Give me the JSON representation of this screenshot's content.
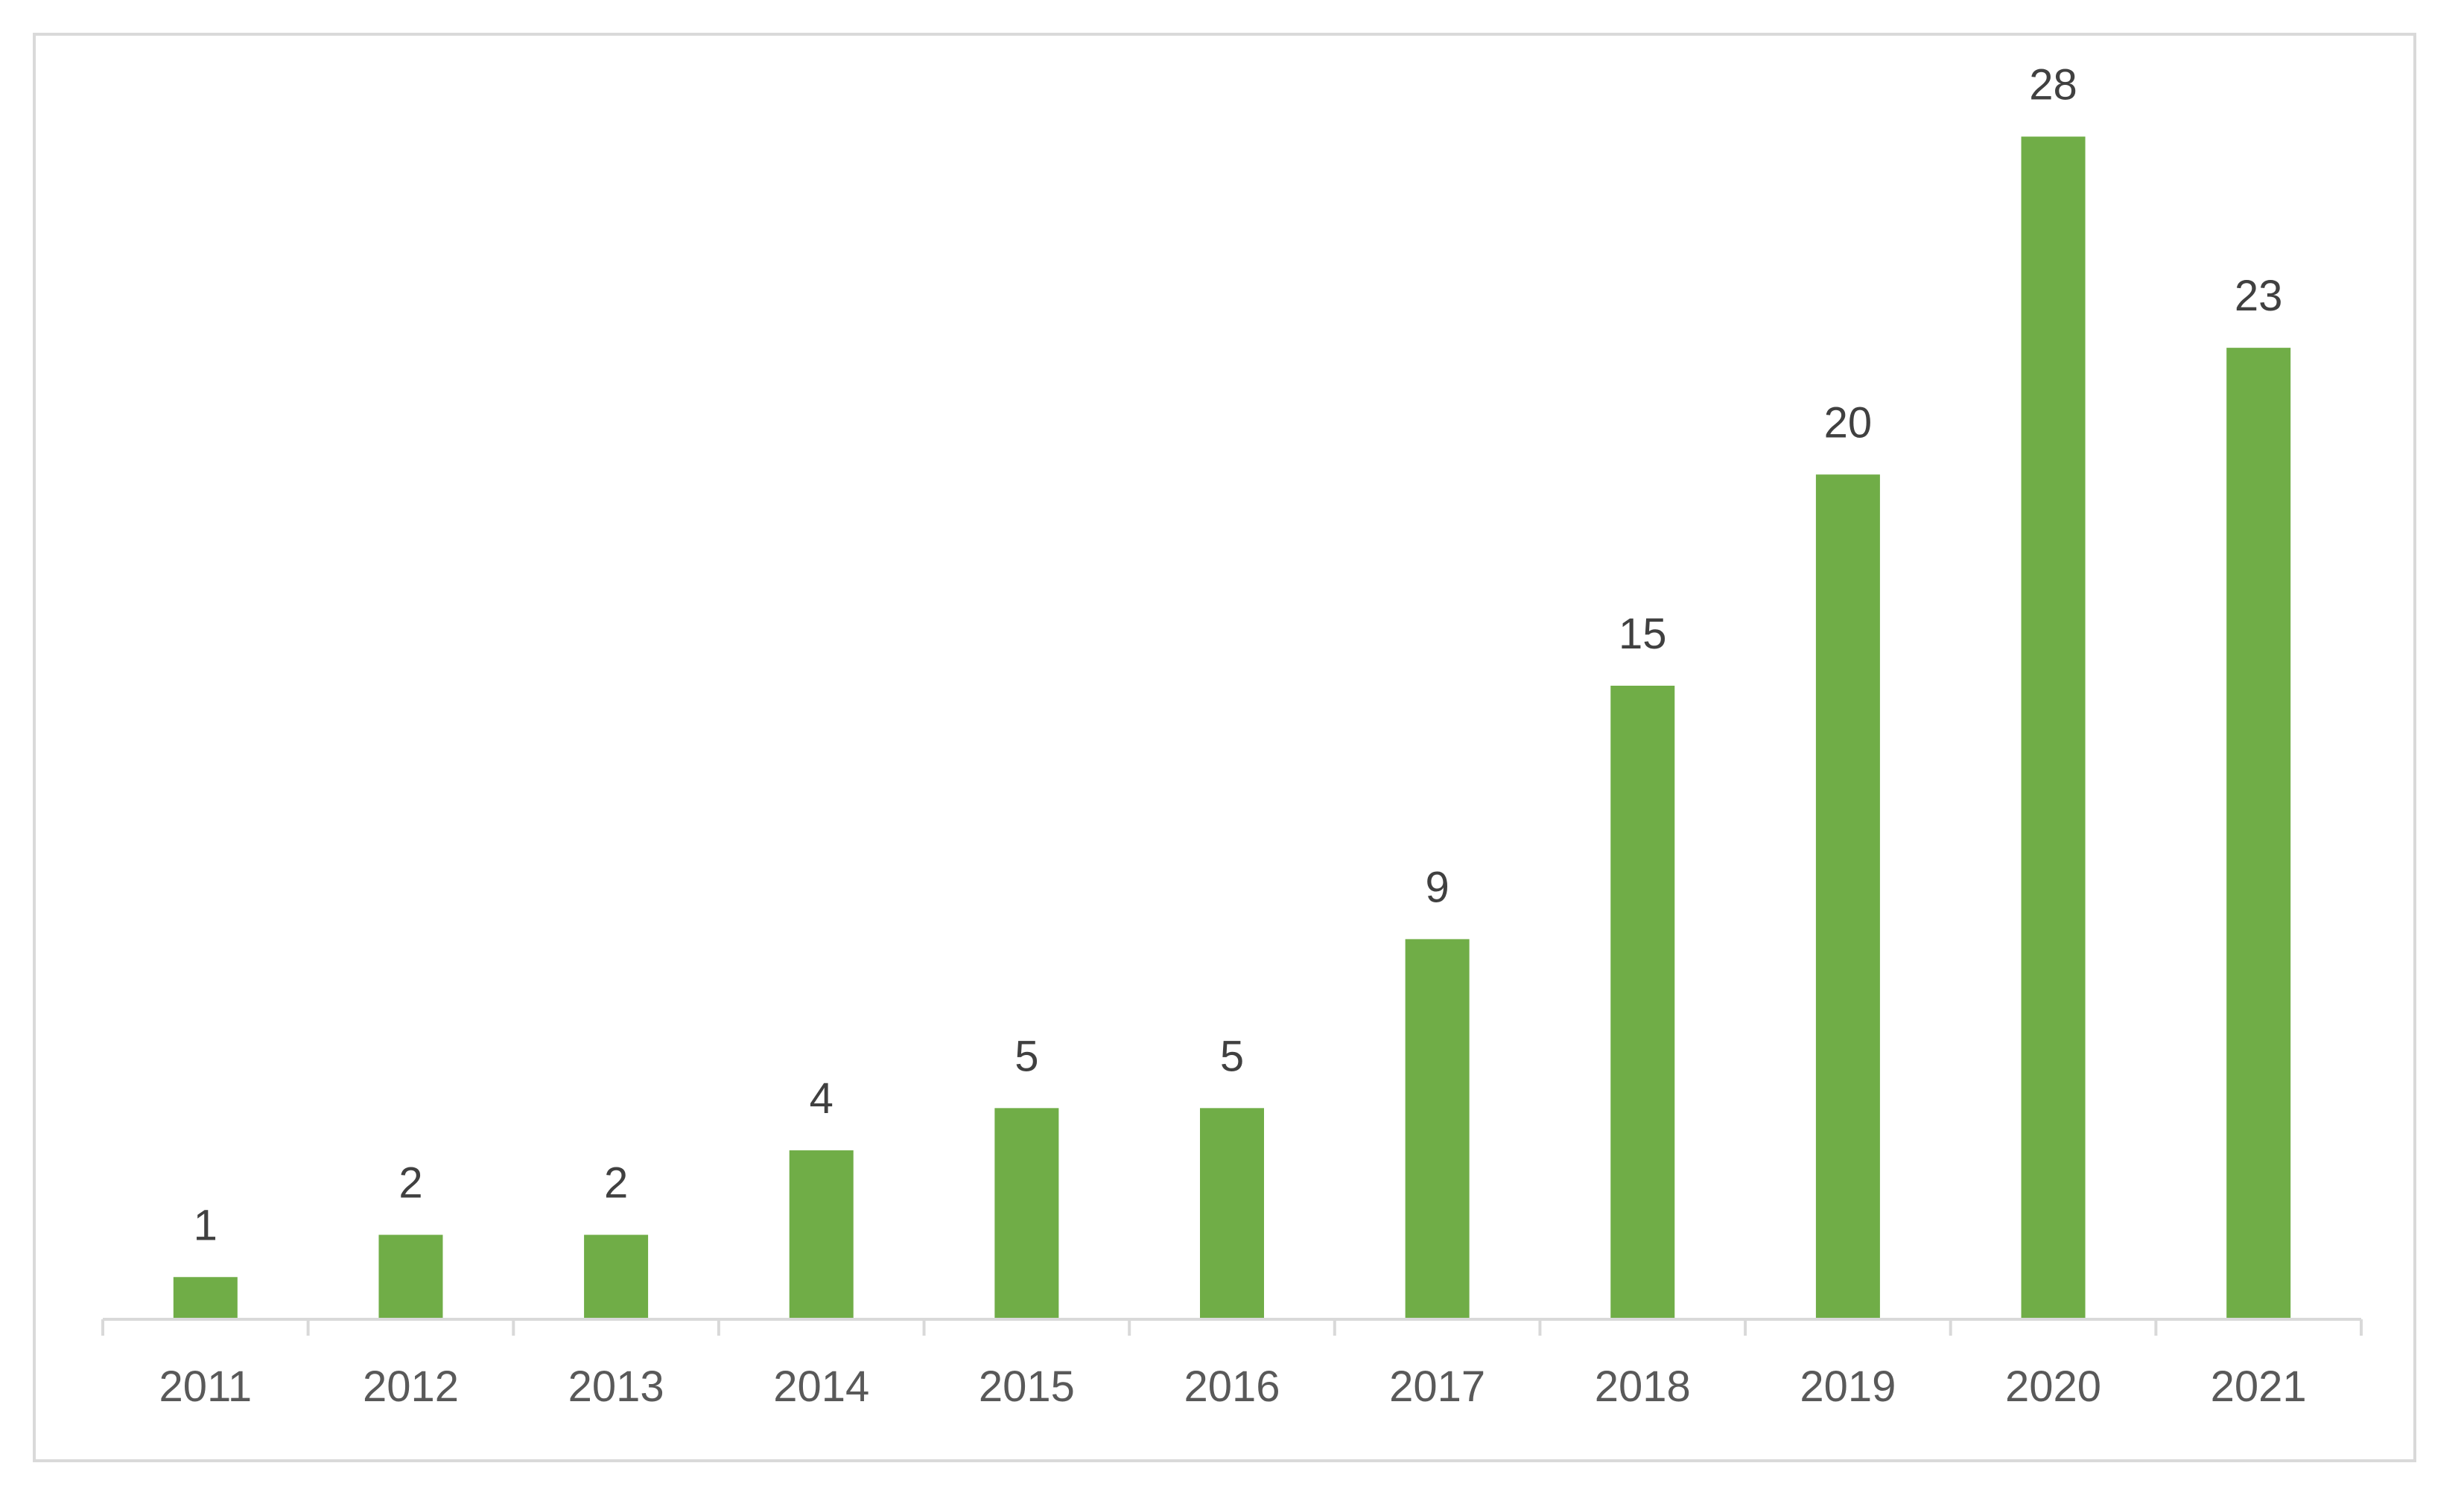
{
  "chart_data": {
    "type": "bar",
    "categories": [
      "2011",
      "2012",
      "2013",
      "2014",
      "2015",
      "2016",
      "2017",
      "2018",
      "2019",
      "2020",
      "2021"
    ],
    "values": [
      1,
      2,
      2,
      4,
      5,
      5,
      9,
      15,
      20,
      28,
      23
    ],
    "data_labels": [
      "1",
      "2",
      "2",
      "4",
      "5",
      "5",
      "9",
      "15",
      "20",
      "28",
      "23"
    ],
    "title": "",
    "xlabel": "",
    "ylabel": "",
    "ylim": [
      0,
      30
    ],
    "grid": false,
    "legend": "none",
    "colors": {
      "bar": "#70ad47",
      "axis": "#d9d9d9",
      "label": "#404040",
      "tick_label": "#595959"
    }
  }
}
